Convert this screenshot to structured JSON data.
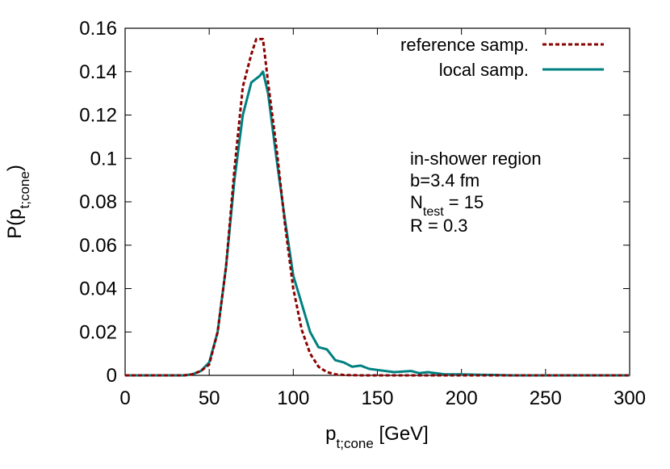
{
  "chart_data": {
    "type": "line",
    "xlabel": {
      "base": "p",
      "sub": "t;cone",
      "tail": " [GeV]"
    },
    "ylabel": {
      "base": "P(p",
      "sub": "t;cone",
      "tail": ")"
    },
    "xlim": [
      0,
      300
    ],
    "ylim": [
      0,
      0.16
    ],
    "xticks": [
      0,
      50,
      100,
      150,
      200,
      250,
      300
    ],
    "yticks": [
      0,
      0.02,
      0.04,
      0.06,
      0.08,
      0.1,
      0.12,
      0.14,
      0.16
    ],
    "xtick_labels": [
      "0",
      "50",
      "100",
      "150",
      "200",
      "250",
      "300"
    ],
    "ytick_labels": [
      "0",
      "0.02",
      "0.04",
      "0.06",
      "0.08",
      "0.1",
      "0.12",
      "0.14",
      "0.16"
    ],
    "grid": false,
    "legend_position": "top-right",
    "series": [
      {
        "name": "reference samp.",
        "color": "#8b0000",
        "style": "dashed",
        "x": [
          0,
          35,
          40,
          45,
          50,
          55,
          60,
          65,
          70,
          75,
          78,
          80,
          82,
          85,
          90,
          95,
          100,
          105,
          110,
          115,
          120,
          125,
          130,
          140,
          150,
          200,
          250,
          300
        ],
        "y": [
          0,
          0,
          0.0005,
          0.002,
          0.005,
          0.02,
          0.05,
          0.095,
          0.133,
          0.148,
          0.155,
          0.155,
          0.155,
          0.135,
          0.105,
          0.07,
          0.04,
          0.021,
          0.01,
          0.004,
          0.0015,
          0.0005,
          0.0002,
          0,
          0,
          0,
          0,
          0
        ]
      },
      {
        "name": "local samp.",
        "color": "#008080",
        "style": "solid",
        "x": [
          0,
          35,
          40,
          45,
          50,
          55,
          60,
          65,
          70,
          75,
          80,
          82,
          85,
          90,
          95,
          100,
          105,
          110,
          115,
          120,
          125,
          130,
          135,
          140,
          145,
          150,
          160,
          170,
          175,
          180,
          190,
          200,
          210,
          220,
          230,
          250,
          300
        ],
        "y": [
          0,
          0,
          0.0005,
          0.002,
          0.006,
          0.02,
          0.05,
          0.09,
          0.12,
          0.135,
          0.138,
          0.14,
          0.13,
          0.1,
          0.072,
          0.046,
          0.033,
          0.02,
          0.013,
          0.012,
          0.007,
          0.006,
          0.004,
          0.0045,
          0.003,
          0.0025,
          0.0015,
          0.002,
          0.001,
          0.0015,
          0.0005,
          0.0005,
          0.0003,
          0.0002,
          0,
          0,
          0
        ]
      }
    ],
    "annotations": [
      {
        "text": "in-shower region"
      },
      {
        "text": "b=3.4 fm"
      },
      {
        "base": "N",
        "sub": "test",
        "tail": " = 15"
      },
      {
        "text": "R = 0.3"
      }
    ]
  }
}
